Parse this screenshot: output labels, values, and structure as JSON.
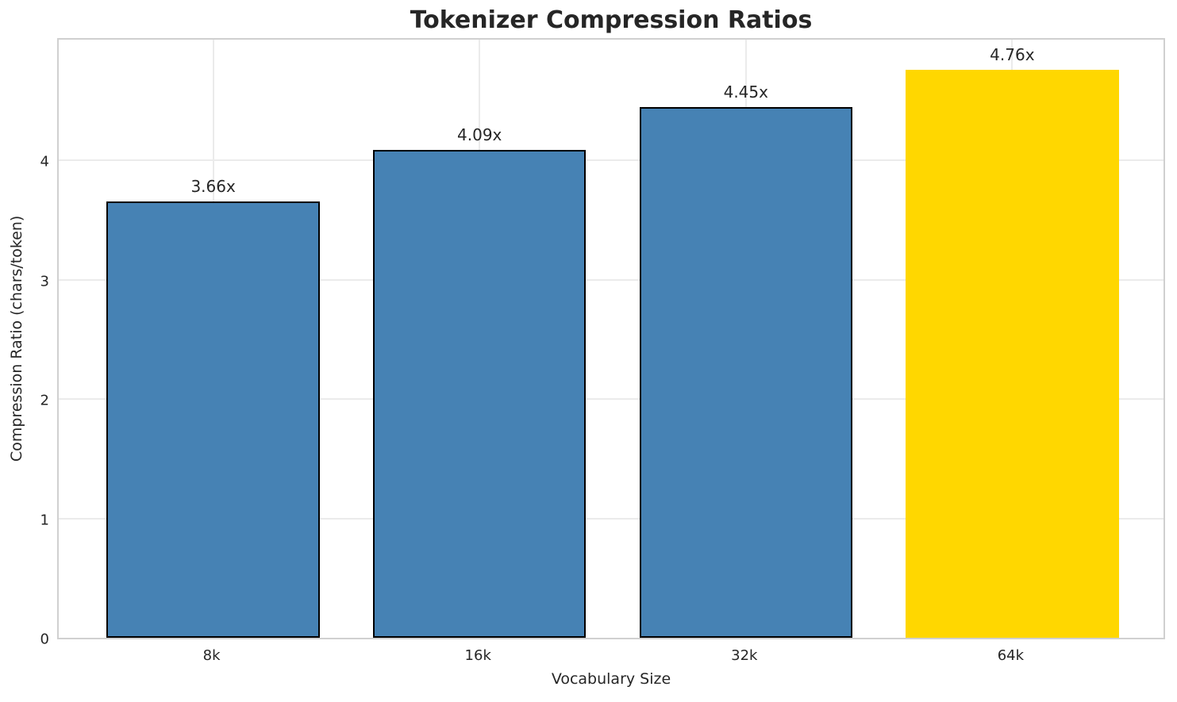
{
  "chart_data": {
    "type": "bar",
    "title": "Tokenizer Compression Ratios",
    "xlabel": "Vocabulary Size",
    "ylabel": "Compression Ratio (chars/token)",
    "categories": [
      "8k",
      "16k",
      "32k",
      "64k"
    ],
    "values": [
      3.66,
      4.09,
      4.45,
      4.76
    ],
    "bar_labels": [
      "3.66x",
      "4.09x",
      "4.45x",
      "4.76x"
    ],
    "bar_colors": [
      "#4682B4",
      "#4682B4",
      "#4682B4",
      "#FFD700"
    ],
    "bar_edge_colors": [
      "#000000",
      "#000000",
      "#000000",
      "none"
    ],
    "yticks": [
      0,
      1,
      2,
      3,
      4
    ],
    "ylim": [
      0,
      5.04
    ],
    "grid": true,
    "legend": "none",
    "colors": {
      "default_bar": "#4682B4",
      "highlight_bar": "#FFD700",
      "grid": "#ebebeb",
      "spine": "#d0d0d0",
      "text": "#262626"
    }
  }
}
